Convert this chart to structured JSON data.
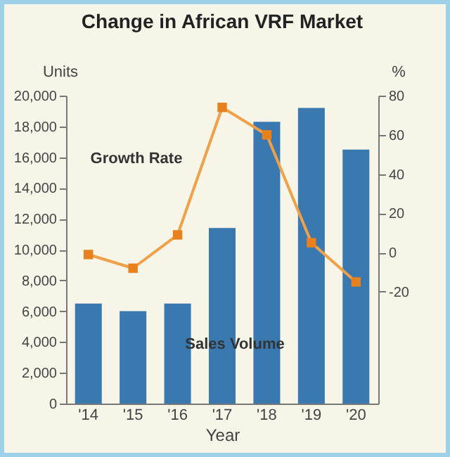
{
  "chart_data": {
    "type": "bar",
    "title": "Change in African VRF Market",
    "xlabel": "Year",
    "ylabel": "Units",
    "y2label": "%",
    "categories": [
      "'14",
      "'15",
      "'16",
      "'17",
      "'18",
      "'19",
      "'20"
    ],
    "series": [
      {
        "name": "Sales Volume",
        "color": "#3a78b0",
        "values": [
          6500,
          6000,
          6500,
          11400,
          18300,
          19200,
          16500
        ]
      },
      {
        "name": "Growth Rate",
        "type": "line",
        "axis": "y2",
        "color": "#f0a048",
        "marker": "square",
        "values": [
          -1,
          -8,
          9,
          74,
          60,
          5,
          -15
        ]
      }
    ],
    "ylim": [
      0,
      20000
    ],
    "yticks": [
      {
        "value": 0,
        "label": "0"
      },
      {
        "value": 2000,
        "label": "2,000"
      },
      {
        "value": 4000,
        "label": "4,000"
      },
      {
        "value": 6000,
        "label": "6,000"
      },
      {
        "value": 8000,
        "label": "8,000"
      },
      {
        "value": 10000,
        "label": "10,000"
      },
      {
        "value": 12000,
        "label": "12,000"
      },
      {
        "value": 14000,
        "label": "14,000"
      },
      {
        "value": 16000,
        "label": "16,000"
      },
      {
        "value": 18000,
        "label": "18,000"
      },
      {
        "value": 20000,
        "label": "20,000"
      }
    ],
    "y2lim": [
      -77,
      80
    ],
    "y2ticks": [
      -20,
      0,
      20,
      40,
      60,
      80
    ],
    "grid": false
  }
}
